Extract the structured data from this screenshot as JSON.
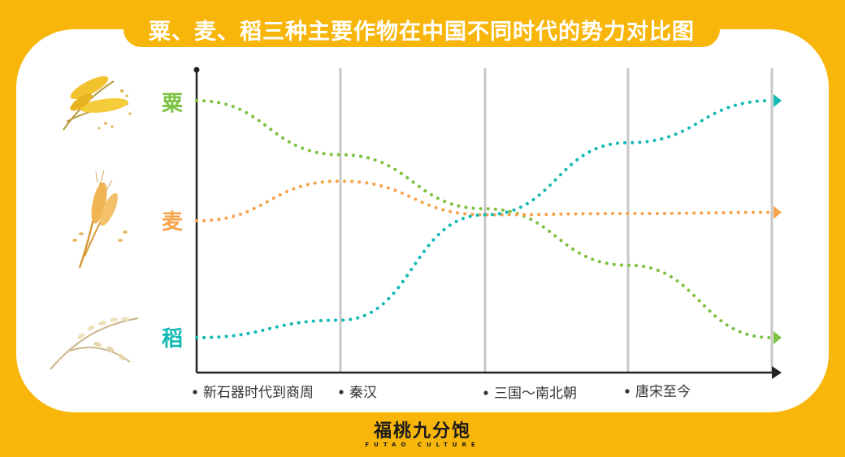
{
  "title": "粟、麦、稻三种主要作物在中国不同时代的势力对比图",
  "brand": {
    "name": "福桃九分饱",
    "subtitle": "FUTAO CULTURE"
  },
  "colors": {
    "background": "#f8b60b",
    "panel": "#ffffff",
    "millet": "#7cc242",
    "wheat": "#f6a44a",
    "rice": "#13b9b5",
    "axis": "#222222",
    "gridline": "#c8c8c8"
  },
  "icons": {
    "millet": "millet-stalk-icon",
    "wheat": "wheat-ear-icon",
    "rice": "rice-stalk-icon"
  },
  "chart_data": {
    "type": "line",
    "title": "粟、麦、稻三种主要作物在中国不同时代的势力对比图",
    "x_categories": [
      "新石器时代到商周",
      "秦汉",
      "三国～南北朝",
      "唐宋至今"
    ],
    "y_levels": [
      "稻",
      "麦",
      "粟"
    ],
    "grid": true,
    "series": [
      {
        "name": "粟",
        "color": "#7cc242",
        "points": [
          [
            0,
            2.0
          ],
          [
            1,
            1.55
          ],
          [
            2,
            1.1
          ],
          [
            3,
            0.62
          ],
          [
            4,
            0.0
          ]
        ]
      },
      {
        "name": "麦",
        "color": "#f6a44a",
        "points": [
          [
            0,
            1.0
          ],
          [
            1,
            1.33
          ],
          [
            2,
            1.05
          ],
          [
            3,
            1.06
          ],
          [
            4,
            1.07
          ]
        ]
      },
      {
        "name": "稻",
        "color": "#13b9b5",
        "points": [
          [
            0,
            0.0
          ],
          [
            1,
            0.15
          ],
          [
            2,
            1.05
          ],
          [
            3,
            1.65
          ],
          [
            4,
            2.0
          ]
        ]
      }
    ]
  }
}
